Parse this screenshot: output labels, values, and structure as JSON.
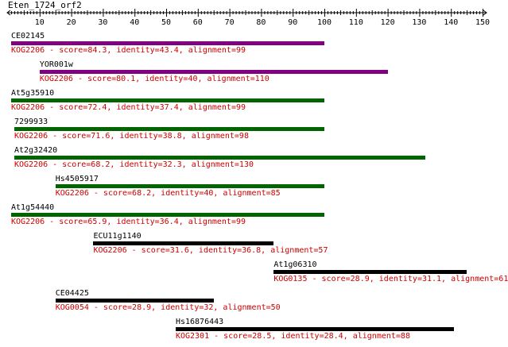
{
  "query": {
    "title": "Eten_1724_orf2"
  },
  "ruler": {
    "min": 1,
    "max": 150,
    "ticks": [
      "10",
      "20",
      "30",
      "40",
      "50",
      "60",
      "70",
      "80",
      "90",
      "100",
      "110",
      "120",
      "130",
      "140",
      "150"
    ]
  },
  "colors": {
    "strong": "#800080",
    "medium": "#006400",
    "weak": "#000000",
    "description": "#cc0000"
  },
  "hits": [
    {
      "name": "CE02145",
      "start": 1,
      "end": 99,
      "color": "strong",
      "description": "KOG2206 - score=84.3, identity=43.4, alignment=99"
    },
    {
      "name": "YOR001w",
      "start": 10,
      "end": 119,
      "color": "strong",
      "description": "KOG2206 - score=80.1, identity=40, alignment=110"
    },
    {
      "name": "At5g35910",
      "start": 1,
      "end": 99,
      "color": "medium",
      "description": "KOG2206 - score=72.4, identity=37.4, alignment=99"
    },
    {
      "name": "7299933",
      "start": 2,
      "end": 99,
      "color": "medium",
      "description": "KOG2206 - score=71.6, identity=38.8, alignment=98"
    },
    {
      "name": "At2g32420",
      "start": 2,
      "end": 131,
      "color": "medium",
      "description": "KOG2206 - score=68.2, identity=32.3, alignment=130"
    },
    {
      "name": "Hs4505917",
      "start": 15,
      "end": 99,
      "color": "medium",
      "description": "KOG2206 - score=68.2, identity=40, alignment=85"
    },
    {
      "name": "At1g54440",
      "start": 1,
      "end": 99,
      "color": "medium",
      "description": "KOG2206 - score=65.9, identity=36.4, alignment=99"
    },
    {
      "name": "ECU11g1140",
      "start": 27,
      "end": 83,
      "color": "weak",
      "description": "KOG2206 - score=31.6, identity=36.8, alignment=57"
    },
    {
      "name": "At1g06310",
      "start": 84,
      "end": 144,
      "color": "weak",
      "description": "KOG0135 - score=28.9, identity=31.1, alignment=61"
    },
    {
      "name": "CE04425",
      "start": 15,
      "end": 64,
      "color": "weak",
      "description": "KOG0054 - score=28.9, identity=32, alignment=50"
    },
    {
      "name": "Hs16876443",
      "start": 53,
      "end": 140,
      "color": "weak",
      "description": "KOG2301 - score=28.5, identity=28.4, alignment=88"
    }
  ]
}
